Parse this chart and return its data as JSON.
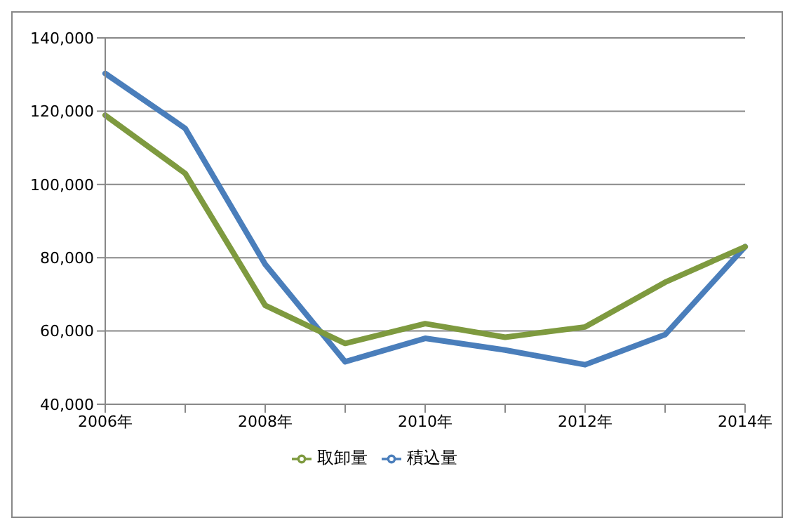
{
  "chart_data": {
    "type": "line",
    "categories": [
      "2006年",
      null,
      "2008年",
      null,
      "2010年",
      null,
      "2012年",
      null,
      "2014年"
    ],
    "series": [
      {
        "name": "積込量",
        "color": "#4a7ebb",
        "values": [
          130300,
          115300,
          78200,
          51600,
          58000,
          54800,
          50800,
          59000,
          83000
        ]
      },
      {
        "name": "取卸量",
        "color": "#7e9a3f",
        "values": [
          118900,
          103000,
          67000,
          56600,
          62000,
          58300,
          61100,
          73300,
          83000
        ]
      }
    ],
    "ylim": [
      40000,
      140000
    ],
    "yticks": [
      {
        "value": 40000,
        "label": "40,000"
      },
      {
        "value": 60000,
        "label": "60,000"
      },
      {
        "value": 80000,
        "label": "80,000"
      },
      {
        "value": 100000,
        "label": "100,000"
      },
      {
        "value": 120000,
        "label": "120,000"
      },
      {
        "value": 140000,
        "label": "140,000"
      }
    ],
    "grid": "y",
    "legend": "bottom",
    "marker": "none",
    "line_style": "solid"
  }
}
